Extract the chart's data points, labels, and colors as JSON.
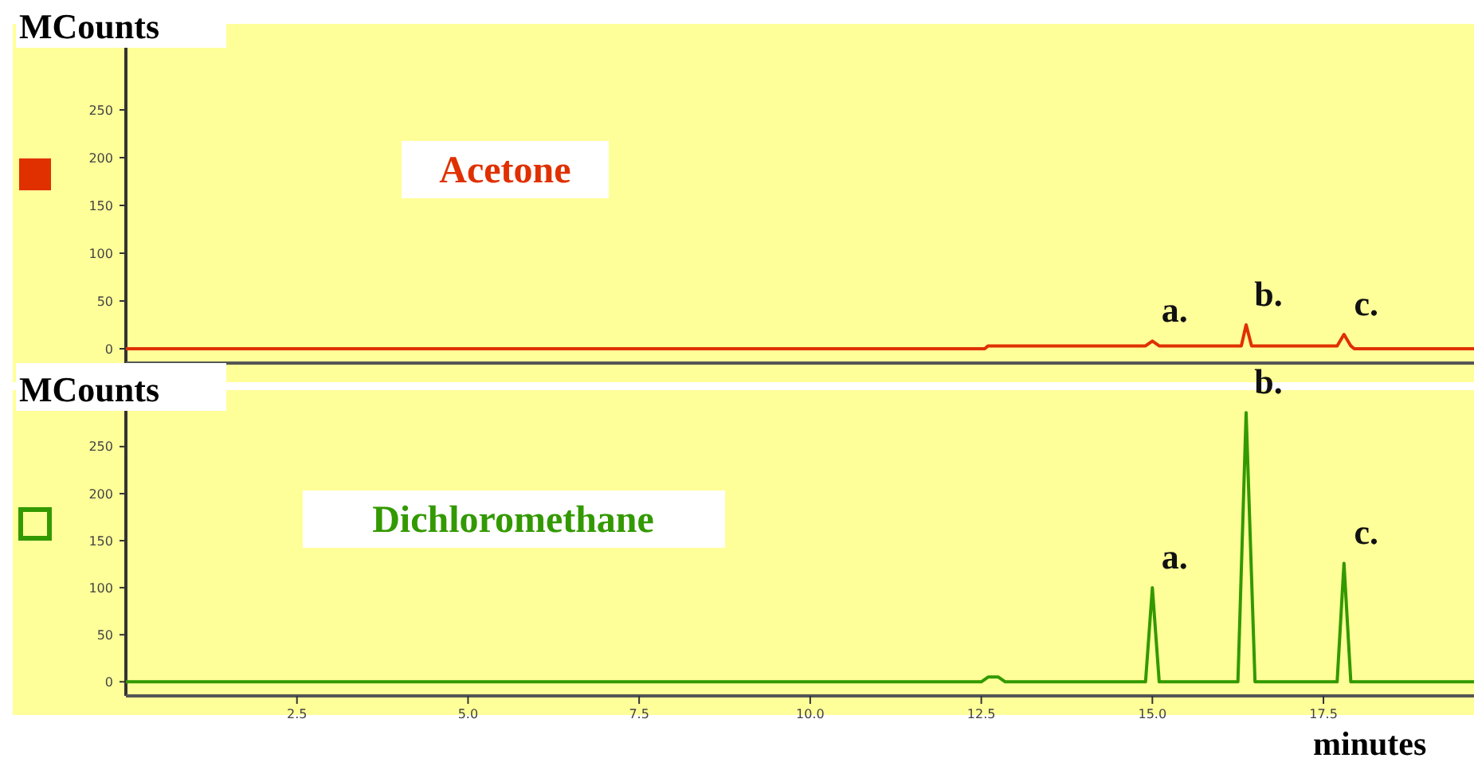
{
  "chart_data": [
    {
      "type": "line",
      "ylabel": "MCounts",
      "x": [
        0,
        12.55,
        12.6,
        14.9,
        15.0,
        15.1,
        16.3,
        16.37,
        16.45,
        17.7,
        17.8,
        17.9,
        17.95,
        19.7
      ],
      "series": [
        {
          "name": "Acetone",
          "color": "#e03000",
          "values": [
            0,
            0,
            3,
            3,
            8,
            3,
            3,
            25,
            3,
            3,
            15,
            3,
            0,
            0
          ]
        }
      ],
      "xlim": [
        0,
        19.7
      ],
      "ylim": [
        -15,
        340
      ],
      "yticks": [
        0,
        50,
        100,
        150,
        200,
        250
      ],
      "tick_labels": "y",
      "legend": "left",
      "marker": "none",
      "annotations": [
        {
          "text": "a.",
          "x": 15.0,
          "y": 8
        },
        {
          "text": "b.",
          "x": 16.37,
          "y": 25
        },
        {
          "text": "c.",
          "x": 17.8,
          "y": 15
        }
      ]
    },
    {
      "type": "line",
      "ylabel": "MCounts",
      "xlabel": "minutes",
      "x": [
        0,
        12.5,
        12.6,
        12.75,
        12.85,
        14.9,
        15.0,
        15.1,
        16.25,
        16.37,
        16.5,
        17.7,
        17.8,
        17.9,
        19.7
      ],
      "series": [
        {
          "name": "Dichloromethane",
          "color": "#339900",
          "values": [
            0,
            0,
            5,
            5,
            0,
            0,
            100,
            0,
            0,
            286,
            0,
            0,
            126,
            0,
            0
          ]
        }
      ],
      "xlim": [
        0,
        19.7
      ],
      "xticks": [
        {
          "value": 2.5,
          "label": "2.5"
        },
        {
          "value": 5,
          "label": "5.0"
        },
        {
          "value": 7.5,
          "label": "7.5"
        },
        {
          "value": 10,
          "label": "10.0"
        },
        {
          "value": 12.5,
          "label": "12.5"
        },
        {
          "value": 15,
          "label": "15.0"
        },
        {
          "value": 17.5,
          "label": "17.5"
        }
      ],
      "ylim": [
        -15,
        310
      ],
      "yticks": [
        0,
        50,
        100,
        150,
        200,
        250
      ],
      "legend": "left",
      "marker": "none",
      "annotations": [
        {
          "text": "a.",
          "x": 15.0,
          "y": 100
        },
        {
          "text": "b.",
          "x": 16.37,
          "y": 286
        },
        {
          "text": "c.",
          "x": 17.8,
          "y": 126
        }
      ]
    }
  ]
}
